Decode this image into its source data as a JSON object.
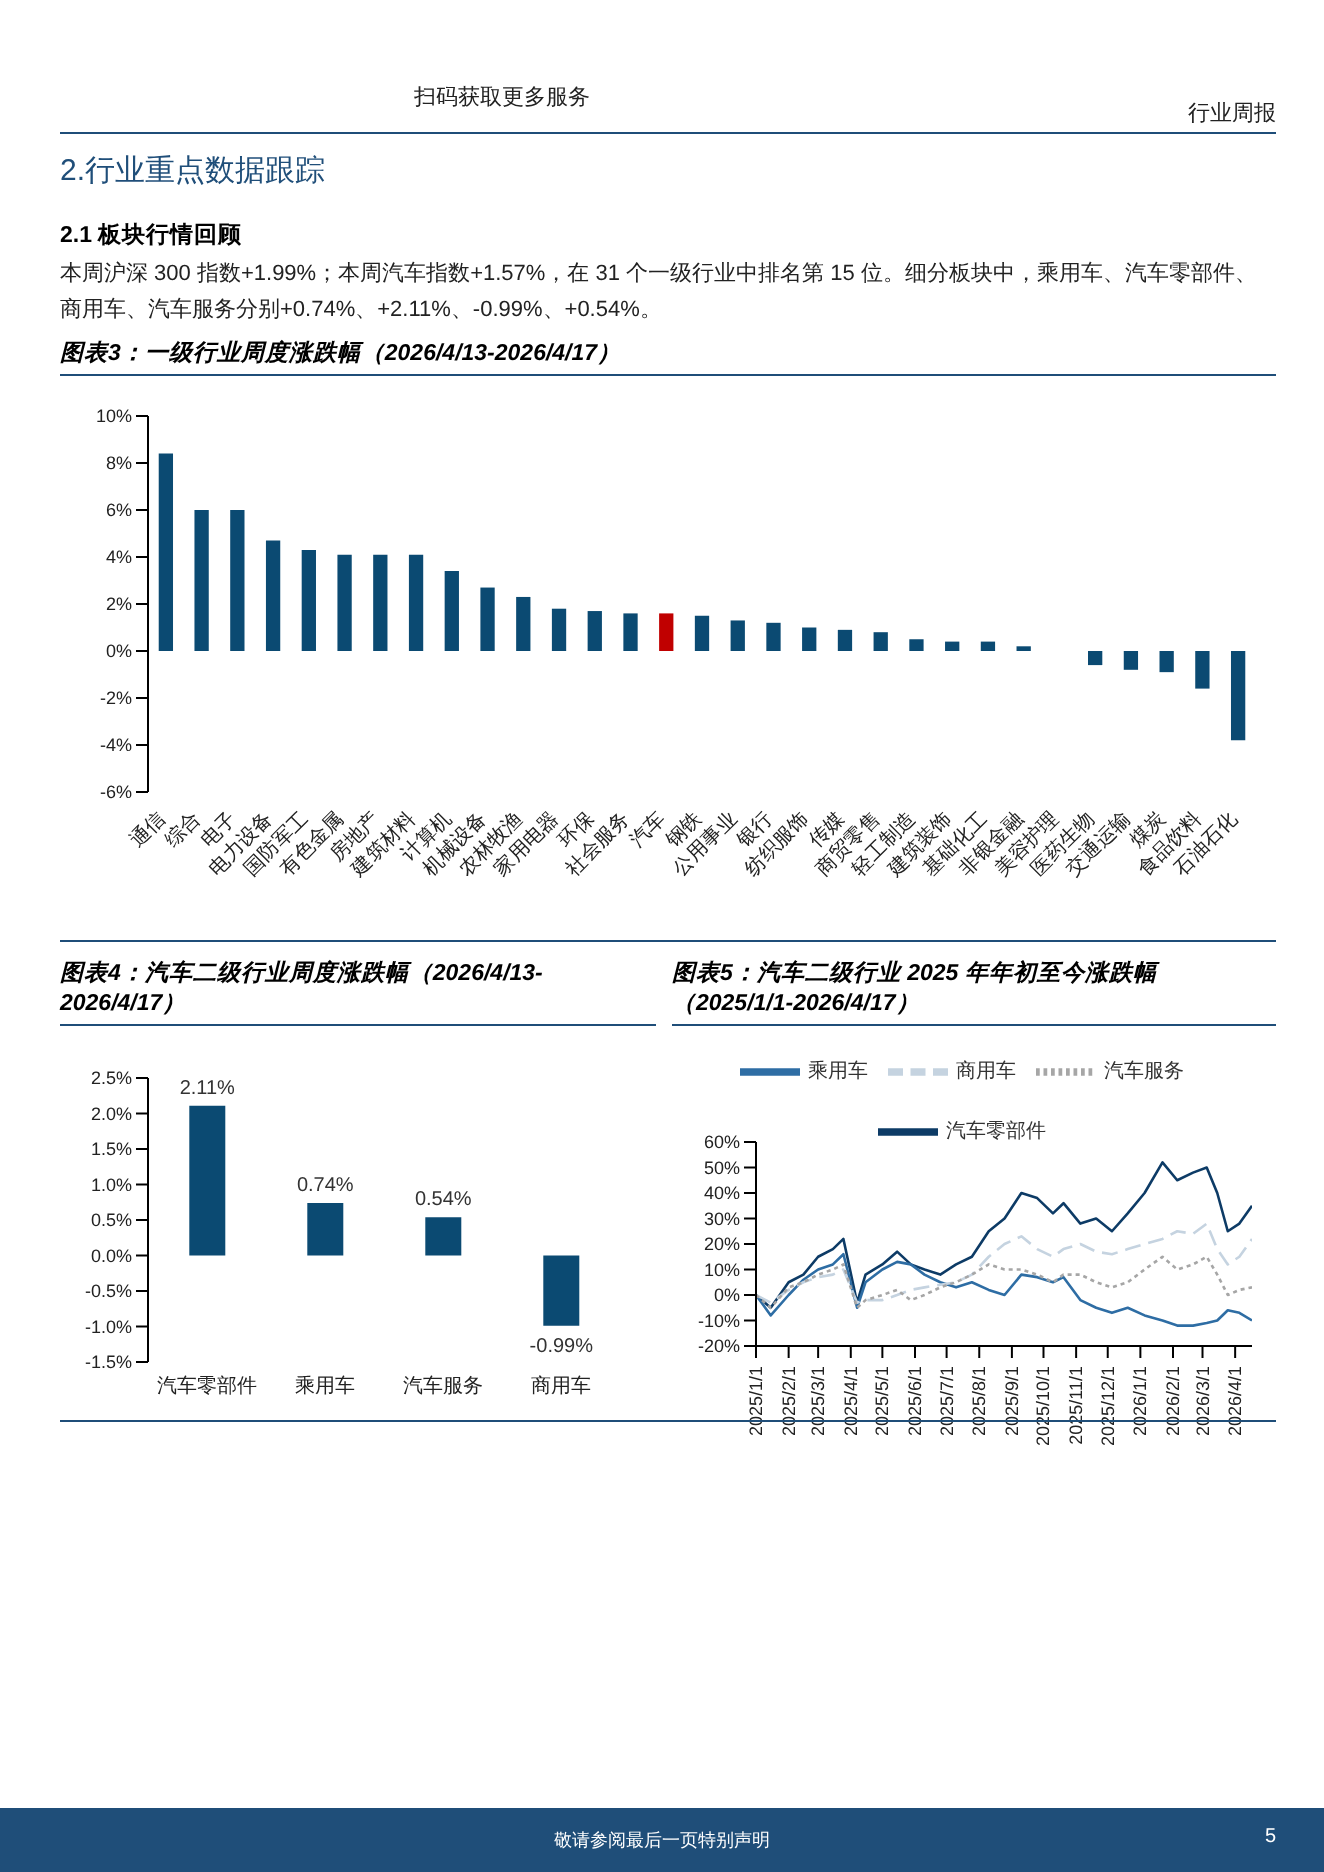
{
  "chart_data": [
    {
      "type": "bar",
      "title": "图表3：一级行业周度涨跌幅（2026/4/13-2026/4/17）",
      "annotations": [
        "扫码获取更多服务",
        "行业周报",
        "2.行业重点数据跟踪",
        "2.1 板块行情回顾",
        "本周沪深 300 指数+1.99%；本周汽车指数+1.57%，在 31 个一级行业中排名第 15 位。细分板块中，乘用车、汽车零部件、商用车、汽车服务分别+0.74%、+2.11%、-0.99%、+0.54%。"
      ],
      "categories": [
        "通信",
        "综合",
        "电子",
        "电力设备",
        "国防军工",
        "有色金属",
        "房地产",
        "建筑材料",
        "计算机",
        "机械设备",
        "农林牧渔",
        "家用电器",
        "环保",
        "社会服务",
        "汽车",
        "钢铁",
        "公用事业",
        "银行",
        "纺织服饰",
        "传媒",
        "商贸零售",
        "轻工制造",
        "建筑装饰",
        "基础化工",
        "非银金融",
        "美容护理",
        "医药生物",
        "交通运输",
        "煤炭",
        "食品饮料",
        "石油石化"
      ],
      "values": [
        8.4,
        6.0,
        6.0,
        4.7,
        4.3,
        4.1,
        4.1,
        4.1,
        3.4,
        2.7,
        2.3,
        1.8,
        1.7,
        1.6,
        1.6,
        1.5,
        1.3,
        1.2,
        1.0,
        0.9,
        0.8,
        0.5,
        0.4,
        0.4,
        0.2,
        0,
        -0.6,
        -0.8,
        -0.9,
        -1.6,
        -3.8
      ],
      "colors": [
        "#0b4a72",
        "#0b4a72",
        "#0b4a72",
        "#0b4a72",
        "#0b4a72",
        "#0b4a72",
        "#0b4a72",
        "#0b4a72",
        "#0b4a72",
        "#0b4a72",
        "#0b4a72",
        "#0b4a72",
        "#0b4a72",
        "#0b4a72",
        "#c00000",
        "#0b4a72",
        "#0b4a72",
        "#0b4a72",
        "#0b4a72",
        "#0b4a72",
        "#0b4a72",
        "#0b4a72",
        "#0b4a72",
        "#0b4a72",
        "#0b4a72",
        "#0b4a72",
        "#0b4a72",
        "#0b4a72",
        "#0b4a72",
        "#0b4a72",
        "#0b4a72"
      ],
      "ylim": [
        -6,
        10
      ],
      "yticks": [
        {
          "value": -6,
          "label": "-6%"
        },
        {
          "value": -4,
          "label": "-4%"
        },
        {
          "value": -2,
          "label": "-2%"
        },
        {
          "value": 0,
          "label": "0%"
        },
        {
          "value": 2,
          "label": "2%"
        },
        {
          "value": 4,
          "label": "4%"
        },
        {
          "value": 6,
          "label": "6%"
        },
        {
          "value": 8,
          "label": "8%"
        },
        {
          "value": 10,
          "label": "10%"
        }
      ],
      "grid": false
    },
    {
      "type": "bar",
      "title": "图表4：汽车二级行业周度涨跌幅（2026/4/13-2026/4/17）",
      "categories": [
        "汽车零部件",
        "乘用车",
        "汽车服务",
        "商用车"
      ],
      "values": [
        2.11,
        0.74,
        0.54,
        -0.99
      ],
      "value_labels": [
        "2.11%",
        "0.74%",
        "0.54%",
        "-0.99%"
      ],
      "color": "#0b4a72",
      "ylim": [
        -1.5,
        2.5
      ],
      "yticks": [
        {
          "value": -1.5,
          "label": "-1.5%"
        },
        {
          "value": -1,
          "label": "-1.0%"
        },
        {
          "value": -0.5,
          "label": "-0.5%"
        },
        {
          "value": 0,
          "label": "0.0%"
        },
        {
          "value": 0.5,
          "label": "0.5%"
        },
        {
          "value": 1,
          "label": "1.0%"
        },
        {
          "value": 1.5,
          "label": "1.5%"
        },
        {
          "value": 2,
          "label": "2.0%"
        },
        {
          "value": 2.5,
          "label": "2.5%"
        }
      ],
      "grid": false
    },
    {
      "type": "line",
      "title": "图表5：汽车二级行业 2025 年年初至今涨跌幅（2025/1/1-2026/4/17）",
      "annotations": [
        "敬请参阅最后一页特别声明",
        "5"
      ],
      "x": [
        "2025-01-01",
        "2025-01-15",
        "2025-02-01",
        "2025-02-15",
        "2025-03-01",
        "2025-03-15",
        "2025-03-25",
        "2025-04-07",
        "2025-04-15",
        "2025-05-01",
        "2025-05-15",
        "2025-05-28",
        "2025-06-10",
        "2025-06-25",
        "2025-07-10",
        "2025-07-25",
        "2025-08-10",
        "2025-08-25",
        "2025-09-10",
        "2025-09-25",
        "2025-10-10",
        "2025-10-20",
        "2025-11-05",
        "2025-11-20",
        "2025-12-05",
        "2025-12-20",
        "2026-01-05",
        "2026-01-22",
        "2026-02-05",
        "2026-02-20",
        "2026-03-05",
        "2026-03-15",
        "2026-03-25",
        "2026-04-05",
        "2026-04-17"
      ],
      "series": [
        {
          "name": "汽车零部件",
          "color": "#0d3b66",
          "line_style": "solid",
          "values": [
            0,
            -5,
            5,
            8,
            15,
            18,
            22,
            -3,
            8,
            12,
            17,
            12,
            10,
            8,
            12,
            15,
            25,
            30,
            40,
            38,
            32,
            36,
            28,
            30,
            25,
            32,
            40,
            52,
            45,
            48,
            50,
            40,
            25,
            28,
            35
          ]
        },
        {
          "name": "乘用车",
          "color": "#2e6da4",
          "line_style": "solid",
          "values": [
            0,
            -8,
            0,
            6,
            10,
            12,
            16,
            -5,
            5,
            10,
            13,
            12,
            8,
            5,
            3,
            5,
            2,
            0,
            8,
            7,
            5,
            7,
            -2,
            -5,
            -7,
            -5,
            -8,
            -10,
            -12,
            -12,
            -11,
            -10,
            -6,
            -7,
            -10
          ]
        },
        {
          "name": "商用车",
          "color": "#c5d3e0",
          "line_style": "dashed",
          "values": [
            0,
            -3,
            2,
            5,
            7,
            8,
            10,
            -3,
            -2,
            -2,
            0,
            2,
            3,
            4,
            5,
            8,
            15,
            20,
            23,
            18,
            15,
            18,
            20,
            17,
            16,
            18,
            20,
            22,
            25,
            24,
            28,
            18,
            12,
            15,
            22
          ]
        },
        {
          "name": "汽车服务",
          "color": "#a6a6a6",
          "line_style": "dotted",
          "values": [
            0,
            -5,
            3,
            5,
            8,
            10,
            12,
            -5,
            -2,
            0,
            2,
            -2,
            0,
            3,
            5,
            8,
            12,
            10,
            10,
            8,
            5,
            8,
            8,
            5,
            3,
            5,
            10,
            15,
            10,
            12,
            15,
            8,
            0,
            2,
            3
          ]
        }
      ],
      "xlim": [
        "2025-01-01",
        "2026-04-17"
      ],
      "xticks": [
        {
          "value": "2025-01-01",
          "label": "2025/1/1"
        },
        {
          "value": "2025-02-01",
          "label": "2025/2/1"
        },
        {
          "value": "2025-03-01",
          "label": "2025/3/1"
        },
        {
          "value": "2025-04-01",
          "label": "2025/4/1"
        },
        {
          "value": "2025-05-01",
          "label": "2025/5/1"
        },
        {
          "value": "2025-06-01",
          "label": "2025/6/1"
        },
        {
          "value": "2025-07-01",
          "label": "2025/7/1"
        },
        {
          "value": "2025-08-01",
          "label": "2025/8/1"
        },
        {
          "value": "2025-09-01",
          "label": "2025/9/1"
        },
        {
          "value": "2025-10-01",
          "label": "2025/10/1"
        },
        {
          "value": "2025-11-01",
          "label": "2025/11/1"
        },
        {
          "value": "2025-12-01",
          "label": "2025/12/1"
        },
        {
          "value": "2026-01-01",
          "label": "2026/1/1"
        },
        {
          "value": "2026-02-01",
          "label": "2026/2/1"
        },
        {
          "value": "2026-03-01",
          "label": "2026/3/1"
        },
        {
          "value": "2026-04-01",
          "label": "2026/4/1"
        }
      ],
      "ylim": [
        -20,
        60
      ],
      "yticks": [
        {
          "value": -20,
          "label": "-20%"
        },
        {
          "value": -10,
          "label": "-10%"
        },
        {
          "value": 0,
          "label": "0%"
        },
        {
          "value": 10,
          "label": "10%"
        },
        {
          "value": 20,
          "label": "20%"
        },
        {
          "value": 30,
          "label": "30%"
        },
        {
          "value": 40,
          "label": "40%"
        },
        {
          "value": 50,
          "label": "50%"
        },
        {
          "value": 60,
          "label": "60%"
        }
      ],
      "legend": "top",
      "marker": "none",
      "grid": false
    }
  ]
}
